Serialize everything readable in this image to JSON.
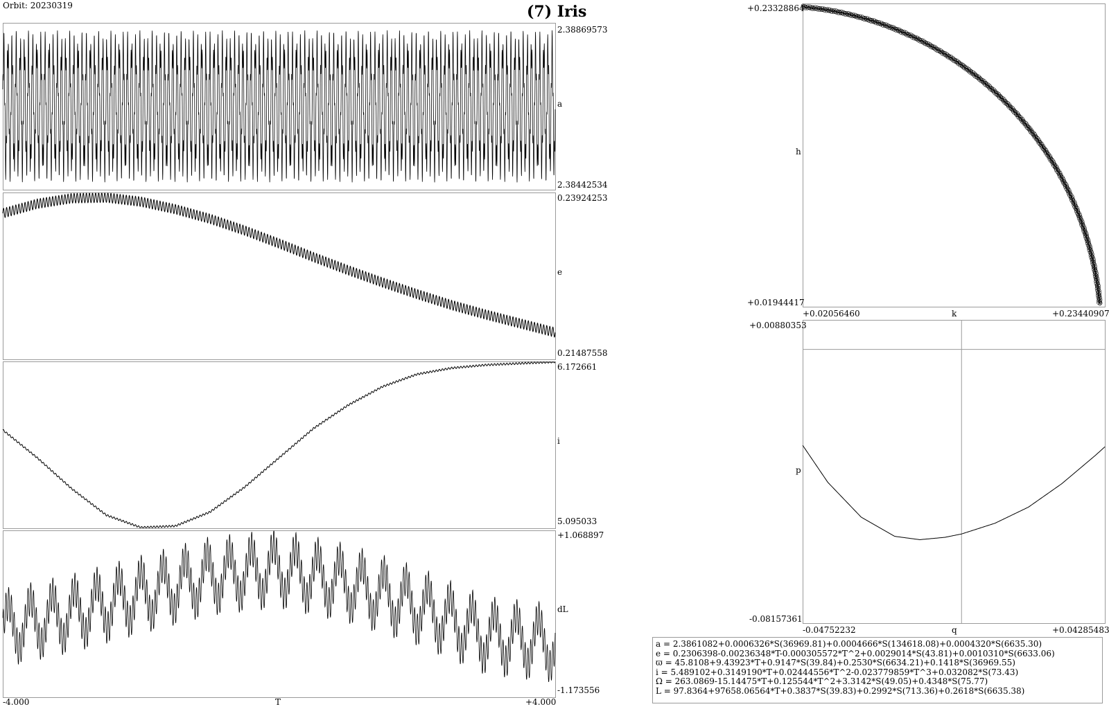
{
  "header": {
    "orbit_label": "Orbit: 20230319",
    "title": "(7) Iris"
  },
  "style": {
    "line_color": "#000000",
    "frame_color": "#9a9a9a",
    "crosshair_color": "#9a9a9a"
  },
  "chart_data": [
    {
      "id": "a",
      "type": "line",
      "ylabel": "a",
      "ytick_top": "2.38869573",
      "ytick_bottom": "2.38442534",
      "ylim": [
        2.38442534,
        2.38869573
      ],
      "xlim": [
        -4.0,
        4.0
      ],
      "signal": {
        "kind": "oscillation",
        "center": 2.38656,
        "amplitude": 0.00195,
        "cycles": 134,
        "trend": 0.0
      }
    },
    {
      "id": "e",
      "type": "line",
      "ylabel": "e",
      "ytick_top": "0.23924253",
      "ytick_bottom": "0.21487558",
      "ylim": [
        0.21487558,
        0.23924253
      ],
      "xlim": [
        -4.0,
        4.0
      ],
      "series": {
        "x": [
          -4.0,
          -3.5,
          -3.0,
          -2.5,
          -2.0,
          -1.5,
          -1.0,
          -0.5,
          0.0,
          0.5,
          1.0,
          1.5,
          2.0,
          2.5,
          3.0,
          3.5,
          4.0
        ],
        "y": [
          0.2362,
          0.2376,
          0.2384,
          0.2385,
          0.2379,
          0.2368,
          0.2354,
          0.2337,
          0.2318,
          0.2298,
          0.2279,
          0.2261,
          0.2244,
          0.2228,
          0.2214,
          0.2201,
          0.2188
        ]
      },
      "ripple": {
        "amplitude": 0.0007,
        "cycles": 180
      }
    },
    {
      "id": "i",
      "type": "line",
      "ylabel": "i",
      "ytick_top": "6.172661",
      "ytick_bottom": "5.095033",
      "ylim": [
        5.095033,
        6.172661
      ],
      "xlim": [
        -4.0,
        4.0
      ],
      "series": {
        "x": [
          -4.0,
          -3.5,
          -3.0,
          -2.5,
          -2.0,
          -1.5,
          -1.0,
          -0.5,
          0.0,
          0.5,
          1.0,
          1.5,
          2.0,
          2.5,
          3.0,
          3.5,
          4.0
        ],
        "y": [
          5.73,
          5.55,
          5.35,
          5.18,
          5.1,
          5.11,
          5.2,
          5.36,
          5.55,
          5.74,
          5.89,
          6.01,
          6.09,
          6.13,
          6.15,
          6.16,
          6.17
        ]
      },
      "ripple": {
        "amplitude": 0.006,
        "cycles": 180
      }
    },
    {
      "id": "dL",
      "type": "line",
      "ylabel": "dL",
      "ytick_top": "+1.068897",
      "ytick_bottom": "-1.173556",
      "ylim": [
        -1.173556,
        1.068897
      ],
      "xlim": [
        -4.0,
        4.0
      ],
      "xlabel": "T",
      "xtick_left": "-4.000",
      "xtick_right": "+4.000",
      "envelope": {
        "x": [
          -4.0,
          -3.0,
          -2.0,
          -1.0,
          0.0,
          1.0,
          2.0,
          3.0,
          4.0
        ],
        "y": [
          -0.25,
          -0.05,
          0.2,
          0.45,
          0.55,
          0.35,
          0.05,
          -0.35,
          -0.45
        ]
      },
      "waves": [
        {
          "amplitude": 0.32,
          "cycles": 25
        },
        {
          "amplitude": 0.22,
          "cycles": 200
        }
      ]
    },
    {
      "id": "hk",
      "type": "scatter",
      "xlabel": "k",
      "ylabel": "h",
      "xtick_left": "+0.02056460",
      "xtick_right": "+0.23440907",
      "ytick_top": "+0.23328864",
      "ytick_bottom": "+0.01944417",
      "xlim": [
        0.0205646,
        0.23440907
      ],
      "ylim": [
        0.01944417,
        0.23328864
      ],
      "radius": 0.2318,
      "angle_range_deg": [
        5.3,
        84.9
      ],
      "band": 0.0009
    },
    {
      "id": "pq",
      "type": "line",
      "xlabel": "q",
      "ylabel": "p",
      "xtick_left": "-0.04752232",
      "xtick_right": "+0.04285483",
      "ytick_top": "+0.00880353",
      "ytick_bottom": "-0.08157361",
      "xlim": [
        -0.04752232,
        0.04285483
      ],
      "ylim": [
        -0.08157361,
        0.00880353
      ],
      "crosshair": [
        0.0,
        0.0
      ],
      "series": {
        "x": [
          -0.0475,
          -0.04,
          -0.03,
          -0.02,
          -0.0125,
          -0.005,
          0.0,
          0.01,
          0.02,
          0.03,
          0.04,
          0.0429
        ],
        "y": [
          -0.0286,
          -0.0396,
          -0.05,
          -0.0557,
          -0.0567,
          -0.056,
          -0.055,
          -0.0518,
          -0.047,
          -0.04,
          -0.0316,
          -0.029
        ]
      }
    }
  ],
  "formulas": [
    "a = 2.3861082+0.0006326*S(36969.81)+0.0004666*S(134618.08)+0.0004320*S(6635.30)",
    "e = 0.2306398-0.00236348*T-0.000305572*T^2+0.0029014*S(43.81)+0.0010310*S(6633.06)",
    "ϖ = 45.8108+9.43923*T+0.9147*S(39.84)+0.2530*S(6634.21)+0.1418*S(36969.55)",
    "i = 5.489102+0.3149190*T+0.02444556*T^2-0.023779859*T^3+0.032082*S(73.43)",
    "Ω = 263.0869-15.14475*T+0.125544*T^2+3.3142*S(49.05)+0.4348*S(75.77)",
    "L = 97.8364+97658.06564*T+0.3837*S(39.83)+0.2992*S(713.36)+0.2618*S(6635.38)"
  ]
}
